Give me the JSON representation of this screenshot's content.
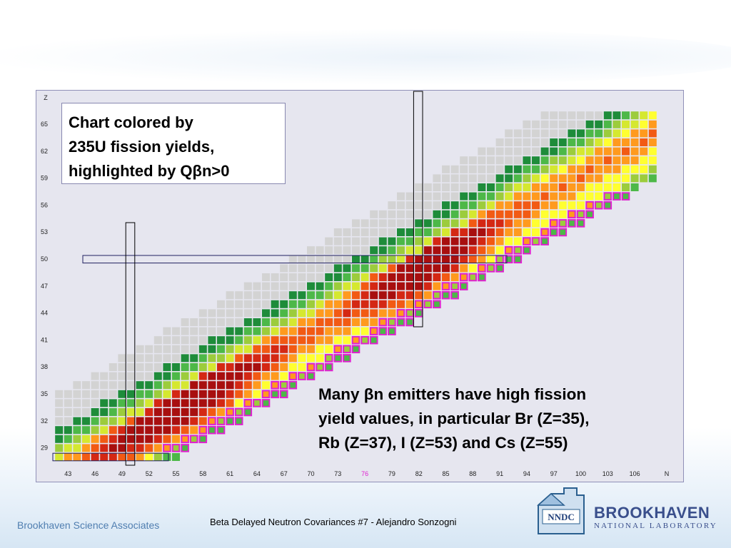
{
  "slide": {
    "chart_box_lines": [
      "Chart colored by",
      "235U fission yields,",
      "highlighted by Q",
      "n>0"
    ],
    "chart_box_beta": "β",
    "note_lines": [
      [
        "Many ",
        "β",
        "n emitters have high fission"
      ],
      [
        "yield values, in particular Br (Z=35),"
      ],
      [
        "Rb (Z=37), I (Z=53) and Cs (Z=55)"
      ]
    ],
    "footer_left": "Brookhaven Science Associates",
    "footer_center": "Beta Delayed Neutron Covariances #7  -  Alejandro Sonzogni",
    "nndc_text": "NNDC",
    "bnl_main": "BROOKHAVEN",
    "bnl_sub": "NATIONAL LABORATORY"
  },
  "chart_data": {
    "type": "heatmap",
    "title": "",
    "xlabel": "N",
    "ylabel": "Z",
    "x_ticks": [
      "43",
      "46",
      "49",
      "52",
      "55",
      "58",
      "61",
      "64",
      "67",
      "70",
      "73",
      "76",
      "79",
      "82",
      "85",
      "88",
      "91",
      "94",
      "97",
      "100",
      "103",
      "106"
    ],
    "x_tick_highlight": "76",
    "y_ticks": [
      "65",
      "62",
      "59",
      "56",
      "53",
      "50",
      "47",
      "44",
      "41",
      "38",
      "35",
      "32",
      "29"
    ],
    "highlighted_N_columns": [
      50,
      82
    ],
    "highlighted_Z_rows": [
      50,
      28
    ],
    "colors": {
      "grey": "#d3d3d3",
      "dark_green": "#1e8c3a",
      "green": "#4db848",
      "light_green": "#9ccc3c",
      "yellow_green": "#d5e830",
      "yellow": "#ffff30",
      "orange": "#ff9a1e",
      "red_orange": "#f25a14",
      "red": "#d42814",
      "dark_red": "#a80f0f",
      "highlight": "#e020d0"
    }
  }
}
